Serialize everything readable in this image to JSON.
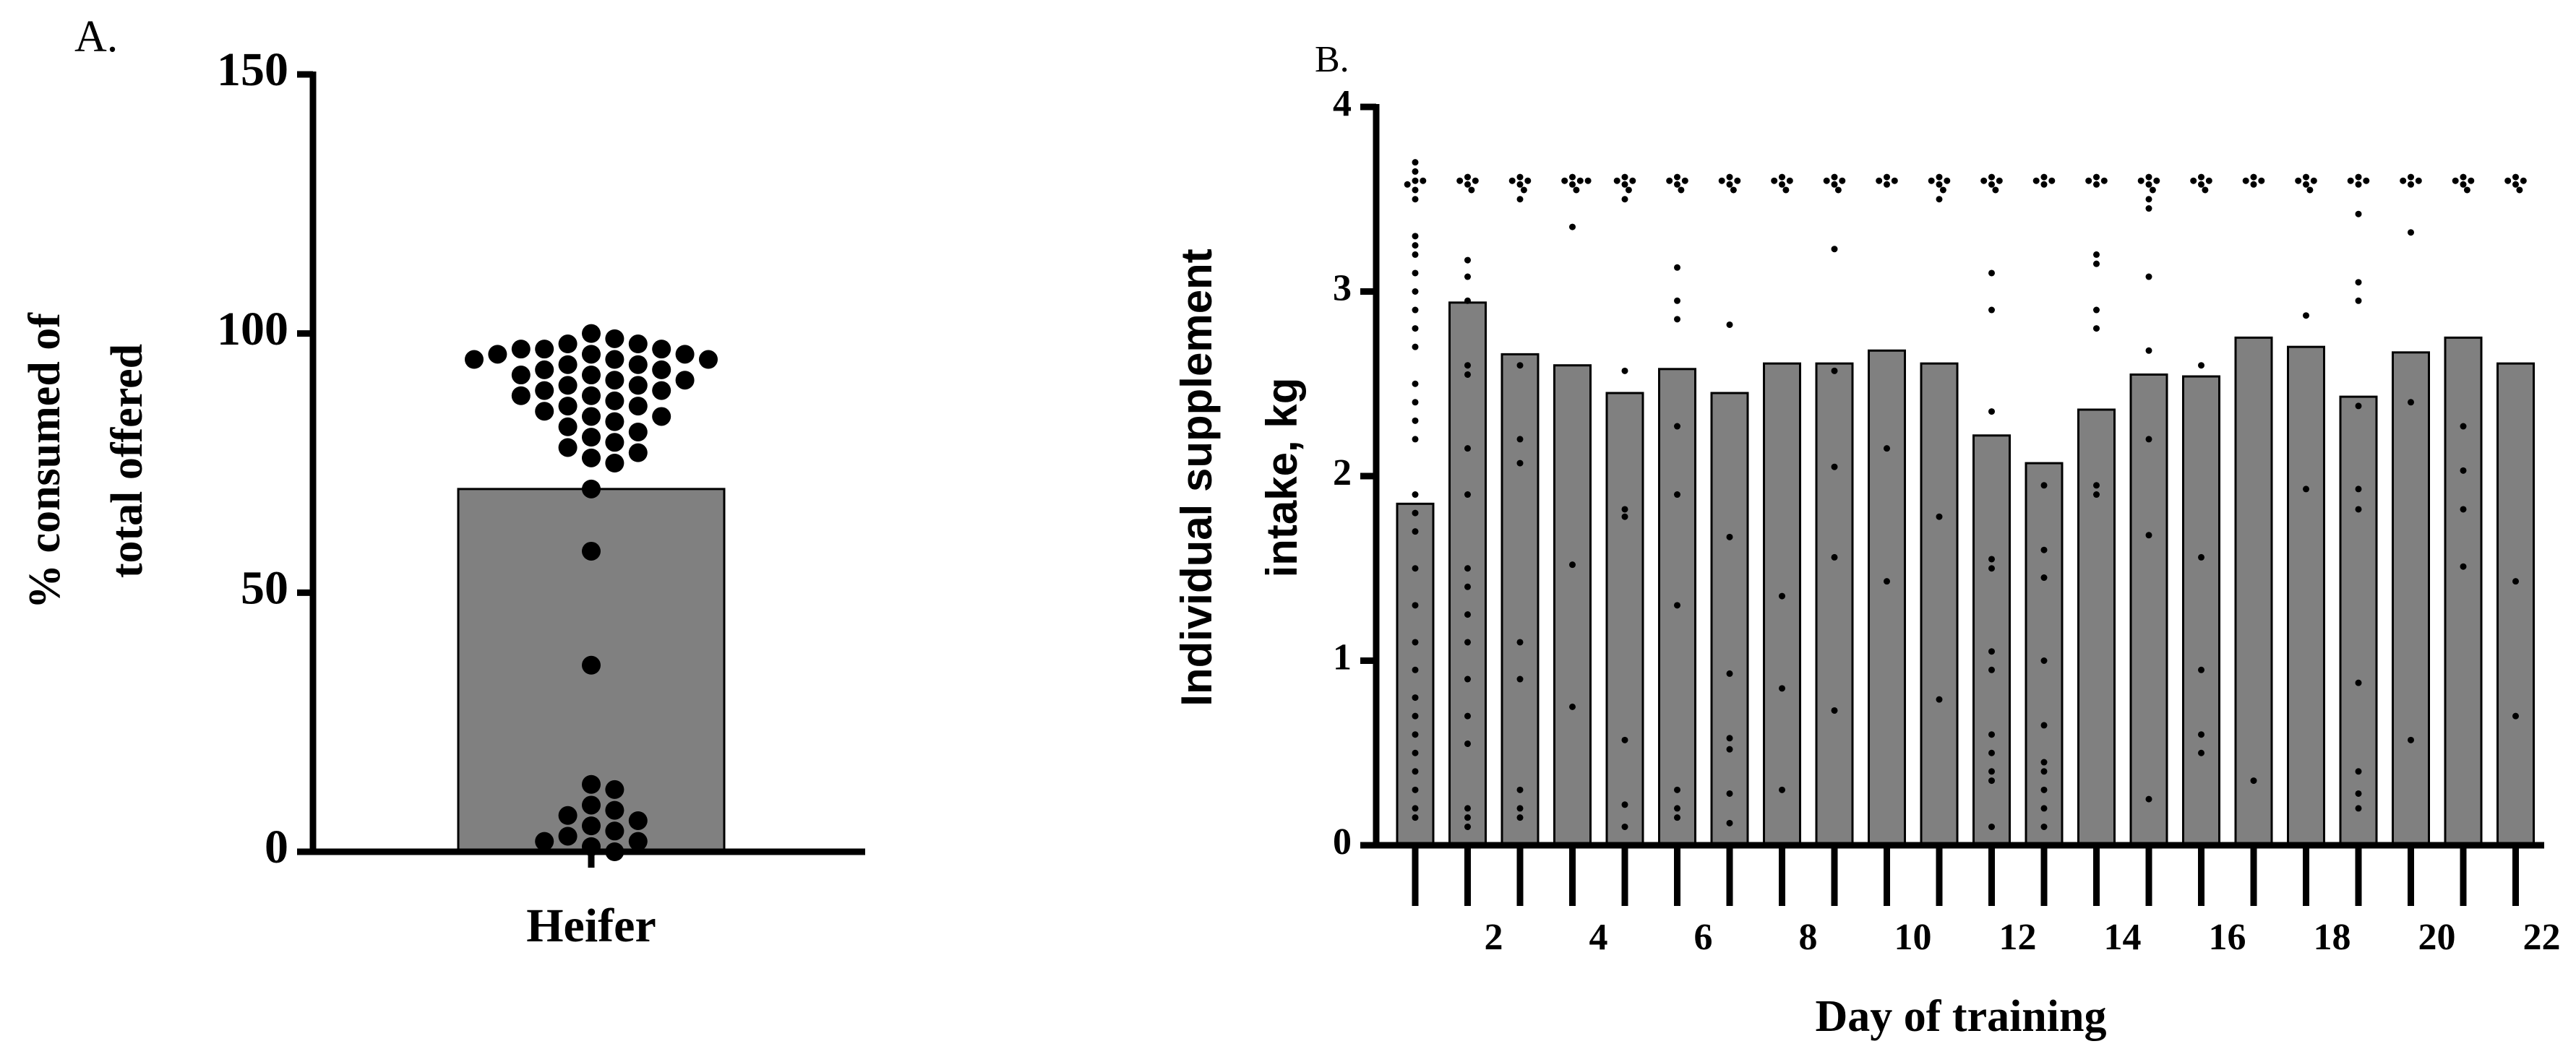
{
  "chart_data": [
    {
      "type": "bar",
      "title": "A.",
      "ylabel": [
        "% consumed of",
        "total offered"
      ],
      "categories": [
        "Heifer"
      ],
      "values": [
        70
      ],
      "color": "#808080",
      "ylim": [
        0,
        150
      ],
      "yticks": [
        0,
        50,
        100,
        150
      ],
      "points": [
        [
          100,
          99,
          98,
          98,
          97,
          97,
          97,
          96,
          96,
          96,
          95,
          95,
          95,
          94,
          94,
          93,
          93,
          92,
          92,
          91,
          91,
          90,
          90,
          89,
          89,
          88,
          88,
          87,
          86,
          86,
          85,
          84,
          84,
          83,
          82,
          81,
          80,
          79,
          78,
          77,
          76,
          75,
          70,
          58,
          36,
          13,
          12,
          9,
          8,
          7,
          6,
          5,
          4,
          3,
          2,
          2,
          1,
          0
        ]
      ]
    },
    {
      "type": "bar",
      "title": "B.",
      "ylabel": [
        "Individual supplement",
        "intake, kg"
      ],
      "xlabel": "Day of training",
      "categories": [
        null,
        2,
        null,
        4,
        null,
        6,
        null,
        8,
        null,
        10,
        null,
        12,
        null,
        14,
        null,
        16,
        null,
        18,
        null,
        20,
        null,
        22
      ],
      "values": [
        1.85,
        2.94,
        2.66,
        2.6,
        2.45,
        2.58,
        2.45,
        2.61,
        2.61,
        2.68,
        2.61,
        2.22,
        2.07,
        2.36,
        2.55,
        2.54,
        2.75,
        2.7,
        2.43,
        2.67,
        2.75,
        2.61
      ],
      "color": "#808080",
      "ylim": [
        0,
        4
      ],
      "yticks": [
        0,
        1,
        2,
        3,
        4
      ],
      "points": [
        [
          3.7,
          3.65,
          3.6,
          3.6,
          3.58,
          3.55,
          3.5,
          3.3,
          3.25,
          3.2,
          3.1,
          3.0,
          2.9,
          2.8,
          2.7,
          2.5,
          2.4,
          2.3,
          2.2,
          1.9,
          1.8,
          1.7,
          1.5,
          1.3,
          1.1,
          0.95,
          0.8,
          0.7,
          0.6,
          0.5,
          0.4,
          0.3,
          0.2,
          0.15
        ],
        [
          3.62,
          3.6,
          3.6,
          3.58,
          3.55,
          3.17,
          3.08,
          2.95,
          2.6,
          2.55,
          2.15,
          1.9,
          1.5,
          1.4,
          1.25,
          1.1,
          0.9,
          0.7,
          0.55,
          0.2,
          0.15,
          0.1
        ],
        [
          3.62,
          3.6,
          3.6,
          3.58,
          3.55,
          3.5,
          2.6,
          2.2,
          2.07,
          1.1,
          0.9,
          0.3,
          0.2,
          0.15
        ],
        [
          3.62,
          3.6,
          3.6,
          3.6,
          3.58,
          3.55,
          3.35,
          1.52,
          0.75
        ],
        [
          3.62,
          3.6,
          3.6,
          3.58,
          3.55,
          3.5,
          2.57,
          1.82,
          1.78,
          0.57,
          0.22,
          0.1
        ],
        [
          3.62,
          3.6,
          3.6,
          3.58,
          3.55,
          3.13,
          2.95,
          2.85,
          2.27,
          1.9,
          1.3,
          0.3,
          0.2,
          0.15
        ],
        [
          3.62,
          3.6,
          3.6,
          3.58,
          3.55,
          2.82,
          1.67,
          0.93,
          0.58,
          0.52,
          0.28,
          0.12
        ],
        [
          3.62,
          3.6,
          3.6,
          3.58,
          3.55,
          1.35,
          0.85,
          0.3
        ],
        [
          3.62,
          3.6,
          3.6,
          3.58,
          3.55,
          3.23,
          2.57,
          2.05,
          1.56,
          0.73
        ],
        [
          3.62,
          3.6,
          3.6,
          3.58,
          2.15,
          1.43
        ],
        [
          3.62,
          3.6,
          3.6,
          3.58,
          3.55,
          3.5,
          1.78,
          0.79
        ],
        [
          3.62,
          3.6,
          3.6,
          3.58,
          3.55,
          3.1,
          2.9,
          2.35,
          1.55,
          1.5,
          1.05,
          0.95,
          0.6,
          0.5,
          0.4,
          0.35,
          0.1
        ],
        [
          3.62,
          3.6,
          3.6,
          3.58,
          1.95,
          1.6,
          1.45,
          1.0,
          0.65,
          0.45,
          0.4,
          0.3,
          0.2,
          0.1
        ],
        [
          3.62,
          3.6,
          3.6,
          3.58,
          3.2,
          3.15,
          2.9,
          2.8,
          1.95,
          1.9
        ],
        [
          3.62,
          3.6,
          3.6,
          3.58,
          3.55,
          3.5,
          3.45,
          3.08,
          2.68,
          2.2,
          1.68,
          0.25
        ],
        [
          3.62,
          3.6,
          3.6,
          3.58,
          3.55,
          2.6,
          1.56,
          0.95,
          0.6,
          0.5
        ],
        [
          3.62,
          3.6,
          3.6,
          3.58,
          0.35
        ],
        [
          3.62,
          3.6,
          3.6,
          3.58,
          3.55,
          2.87,
          1.93
        ],
        [
          3.62,
          3.6,
          3.6,
          3.58,
          3.42,
          3.05,
          2.95,
          2.38,
          1.93,
          1.82,
          0.88,
          0.4,
          0.28,
          0.2
        ],
        [
          3.62,
          3.6,
          3.6,
          3.58,
          3.32,
          2.4,
          0.57
        ],
        [
          3.62,
          3.6,
          3.6,
          3.58,
          3.55,
          2.27,
          2.03,
          1.82,
          1.51
        ],
        [
          3.62,
          3.6,
          3.6,
          3.58,
          3.55,
          1.43,
          0.7
        ]
      ]
    }
  ]
}
